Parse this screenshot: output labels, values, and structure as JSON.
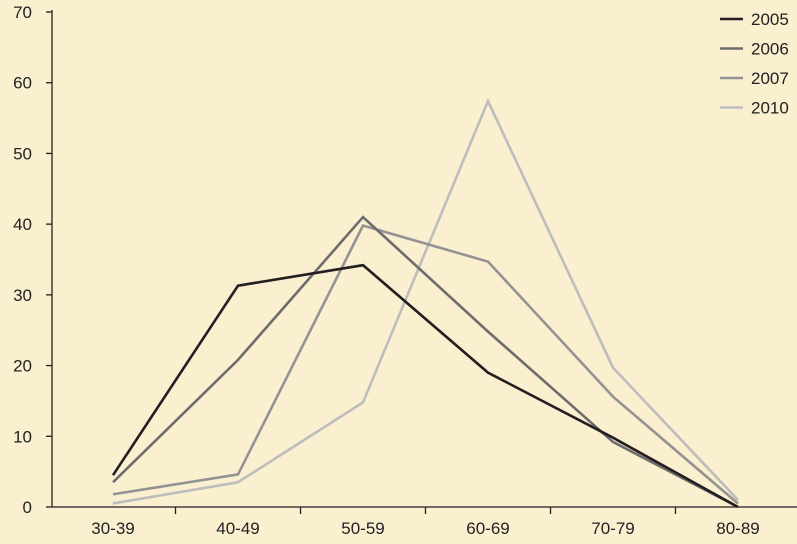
{
  "chart_data": {
    "type": "line",
    "categories": [
      "30-39",
      "40-49",
      "50-59",
      "60-69",
      "70-79",
      "80-89"
    ],
    "series": [
      {
        "name": "2005",
        "color": "#231f20",
        "values": [
          4.5,
          31.3,
          34.2,
          19,
          9.8,
          0
        ]
      },
      {
        "name": "2006",
        "color": "#6d6d6d",
        "values": [
          3.5,
          20.8,
          41,
          24.8,
          9.2,
          0
        ]
      },
      {
        "name": "2007",
        "color": "#939393",
        "values": [
          1.8,
          4.6,
          39.8,
          34.7,
          15.6,
          0.5
        ]
      },
      {
        "name": "2010",
        "color": "#bdbdbd",
        "values": [
          0.5,
          3.5,
          14.8,
          57.4,
          19.7,
          1
        ]
      }
    ],
    "ylim": [
      0,
      70
    ],
    "yticks": [
      0,
      10,
      20,
      30,
      40,
      50,
      60,
      70
    ],
    "grid": false,
    "legend": "top-right"
  }
}
